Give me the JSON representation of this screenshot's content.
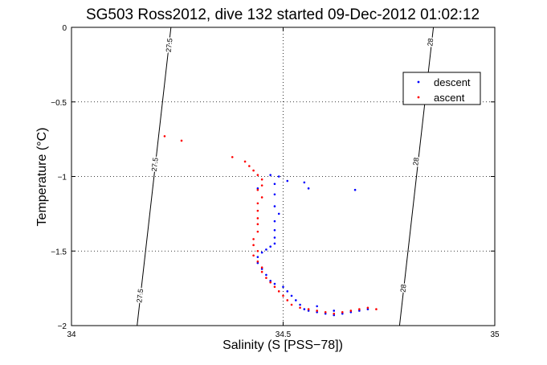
{
  "chart_data": {
    "type": "scatter",
    "title": "SG503 Ross2012, dive 132 started 09-Dec-2012 01:02:12",
    "xlabel": "Salinity (S [PSS−78])",
    "ylabel": "Temperature (°C)",
    "xlim": [
      34,
      35
    ],
    "ylim": [
      -2,
      0
    ],
    "x_ticks": [
      "34",
      "34.5",
      "35"
    ],
    "y_ticks": [
      "0",
      "−0.5",
      "−1",
      "−1.5",
      "−2"
    ],
    "grid": true,
    "legend_position": "top-right",
    "series": [
      {
        "name": "descent",
        "color": "#0000ff",
        "points": [
          [
            34.44,
            -1.08
          ],
          [
            34.47,
            -0.99
          ],
          [
            34.49,
            -1.0
          ],
          [
            34.51,
            -1.03
          ],
          [
            34.55,
            -1.04
          ],
          [
            34.56,
            -1.08
          ],
          [
            34.67,
            -1.09
          ],
          [
            34.48,
            -1.05
          ],
          [
            34.48,
            -1.12
          ],
          [
            34.48,
            -1.2
          ],
          [
            34.49,
            -1.25
          ],
          [
            34.48,
            -1.3
          ],
          [
            34.48,
            -1.36
          ],
          [
            34.48,
            -1.41
          ],
          [
            34.48,
            -1.45
          ],
          [
            34.47,
            -1.47
          ],
          [
            34.46,
            -1.49
          ],
          [
            34.45,
            -1.51
          ],
          [
            34.44,
            -1.54
          ],
          [
            34.44,
            -1.58
          ],
          [
            34.45,
            -1.62
          ],
          [
            34.46,
            -1.66
          ],
          [
            34.47,
            -1.7
          ],
          [
            34.48,
            -1.72
          ],
          [
            34.5,
            -1.74
          ],
          [
            34.51,
            -1.77
          ],
          [
            34.52,
            -1.8
          ],
          [
            34.53,
            -1.83
          ],
          [
            34.54,
            -1.86
          ],
          [
            34.55,
            -1.89
          ],
          [
            34.56,
            -1.9
          ],
          [
            34.58,
            -1.91
          ],
          [
            34.6,
            -1.92
          ],
          [
            34.62,
            -1.93
          ],
          [
            34.64,
            -1.92
          ],
          [
            34.66,
            -1.91
          ],
          [
            34.68,
            -1.9
          ],
          [
            34.7,
            -1.89
          ],
          [
            34.58,
            -1.87
          ],
          [
            34.62,
            -1.9
          ]
        ]
      },
      {
        "name": "ascent",
        "color": "#ff0000",
        "points": [
          [
            34.22,
            -0.73
          ],
          [
            34.26,
            -0.76
          ],
          [
            34.38,
            -0.87
          ],
          [
            34.41,
            -0.9
          ],
          [
            34.42,
            -0.93
          ],
          [
            34.43,
            -0.96
          ],
          [
            34.44,
            -0.99
          ],
          [
            34.45,
            -1.02
          ],
          [
            34.45,
            -1.06
          ],
          [
            34.44,
            -1.09
          ],
          [
            34.45,
            -1.14
          ],
          [
            34.44,
            -1.18
          ],
          [
            34.44,
            -1.23
          ],
          [
            34.44,
            -1.28
          ],
          [
            34.44,
            -1.32
          ],
          [
            34.44,
            -1.37
          ],
          [
            34.43,
            -1.42
          ],
          [
            34.43,
            -1.46
          ],
          [
            34.44,
            -1.5
          ],
          [
            34.43,
            -1.53
          ],
          [
            34.44,
            -1.57
          ],
          [
            34.45,
            -1.61
          ],
          [
            34.45,
            -1.64
          ],
          [
            34.46,
            -1.68
          ],
          [
            34.47,
            -1.71
          ],
          [
            34.48,
            -1.74
          ],
          [
            34.49,
            -1.77
          ],
          [
            34.5,
            -1.8
          ],
          [
            34.51,
            -1.83
          ],
          [
            34.52,
            -1.86
          ],
          [
            34.54,
            -1.88
          ],
          [
            34.56,
            -1.89
          ],
          [
            34.58,
            -1.9
          ],
          [
            34.6,
            -1.91
          ],
          [
            34.62,
            -1.92
          ],
          [
            34.64,
            -1.91
          ],
          [
            34.66,
            -1.9
          ],
          [
            34.68,
            -1.89
          ],
          [
            34.7,
            -1.88
          ],
          [
            34.72,
            -1.89
          ]
        ]
      }
    ],
    "contours": [
      {
        "label": "27.5",
        "points": [
          [
            34.155,
            -2
          ],
          [
            34.235,
            0
          ]
        ],
        "label_positions": [
          [
            34.163,
            -1.8
          ],
          [
            34.198,
            -0.92
          ],
          [
            34.232,
            -0.12
          ]
        ]
      },
      {
        "label": "28",
        "points": [
          [
            34.775,
            -2
          ],
          [
            34.855,
            0
          ]
        ],
        "label_positions": [
          [
            34.785,
            -1.75
          ],
          [
            34.815,
            -0.9
          ],
          [
            34.849,
            -0.1
          ]
        ]
      }
    ]
  }
}
